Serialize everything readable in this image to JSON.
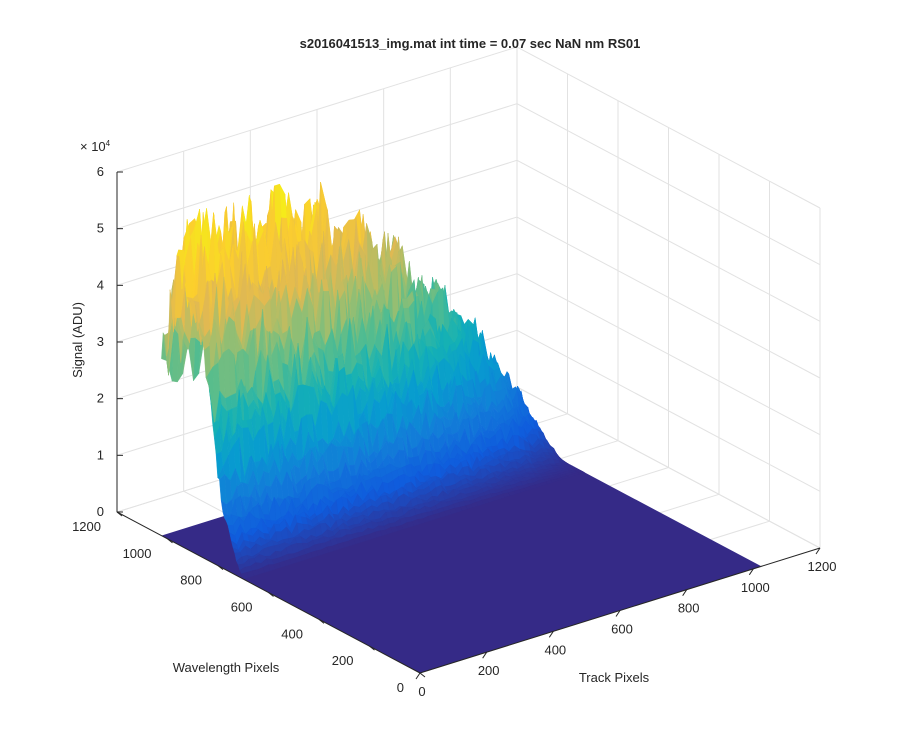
{
  "chart_data": {
    "type": "surface",
    "title": "s2016041513_img.mat int time = 0.07 sec  NaN nm RS01",
    "xlabel": "Track Pixels",
    "ylabel": "Wavelength Pixels",
    "zlabel": "Signal (ADU)",
    "z_exponent_label": "× 10",
    "z_exponent_power": "4",
    "xlim": [
      0,
      1200
    ],
    "ylim": [
      0,
      1200
    ],
    "zlim": [
      0,
      60000
    ],
    "xticks": [
      "0",
      "200",
      "400",
      "600",
      "800",
      "1000",
      "1200"
    ],
    "yticks": [
      "0",
      "200",
      "400",
      "600",
      "800",
      "1000",
      "1200"
    ],
    "zticks": [
      "0",
      "1",
      "2",
      "3",
      "4",
      "5",
      "6"
    ],
    "colormap": "parula",
    "grid": true,
    "signal_region": {
      "track_pixels": [
        0,
        1024
      ],
      "wavelength_pixels": [
        700,
        1024
      ],
      "peak_signal": 58000,
      "approx_profile_by_wavelength_pixel": [
        {
          "wavelength_pixel": 700,
          "signal": 0
        },
        {
          "wavelength_pixel": 740,
          "signal": 5000
        },
        {
          "wavelength_pixel": 780,
          "signal": 12000
        },
        {
          "wavelength_pixel": 820,
          "signal": 26000
        },
        {
          "wavelength_pixel": 860,
          "signal": 40000
        },
        {
          "wavelength_pixel": 900,
          "signal": 52000
        },
        {
          "wavelength_pixel": 940,
          "signal": 57000
        },
        {
          "wavelength_pixel": 980,
          "signal": 50000
        },
        {
          "wavelength_pixel": 1010,
          "signal": 42000
        },
        {
          "wavelength_pixel": 1024,
          "signal": 35000
        }
      ],
      "approx_profile_by_track_pixel": [
        {
          "track_pixel": 0,
          "fraction": 1.0
        },
        {
          "track_pixel": 200,
          "fraction": 0.98
        },
        {
          "track_pixel": 400,
          "fraction": 0.9
        },
        {
          "track_pixel": 600,
          "fraction": 0.75
        },
        {
          "track_pixel": 800,
          "fraction": 0.5
        },
        {
          "track_pixel": 900,
          "fraction": 0.35
        },
        {
          "track_pixel": 1000,
          "fraction": 0.15
        },
        {
          "track_pixel": 1024,
          "fraction": 0.0
        }
      ]
    },
    "floor_color": "#352a87"
  }
}
